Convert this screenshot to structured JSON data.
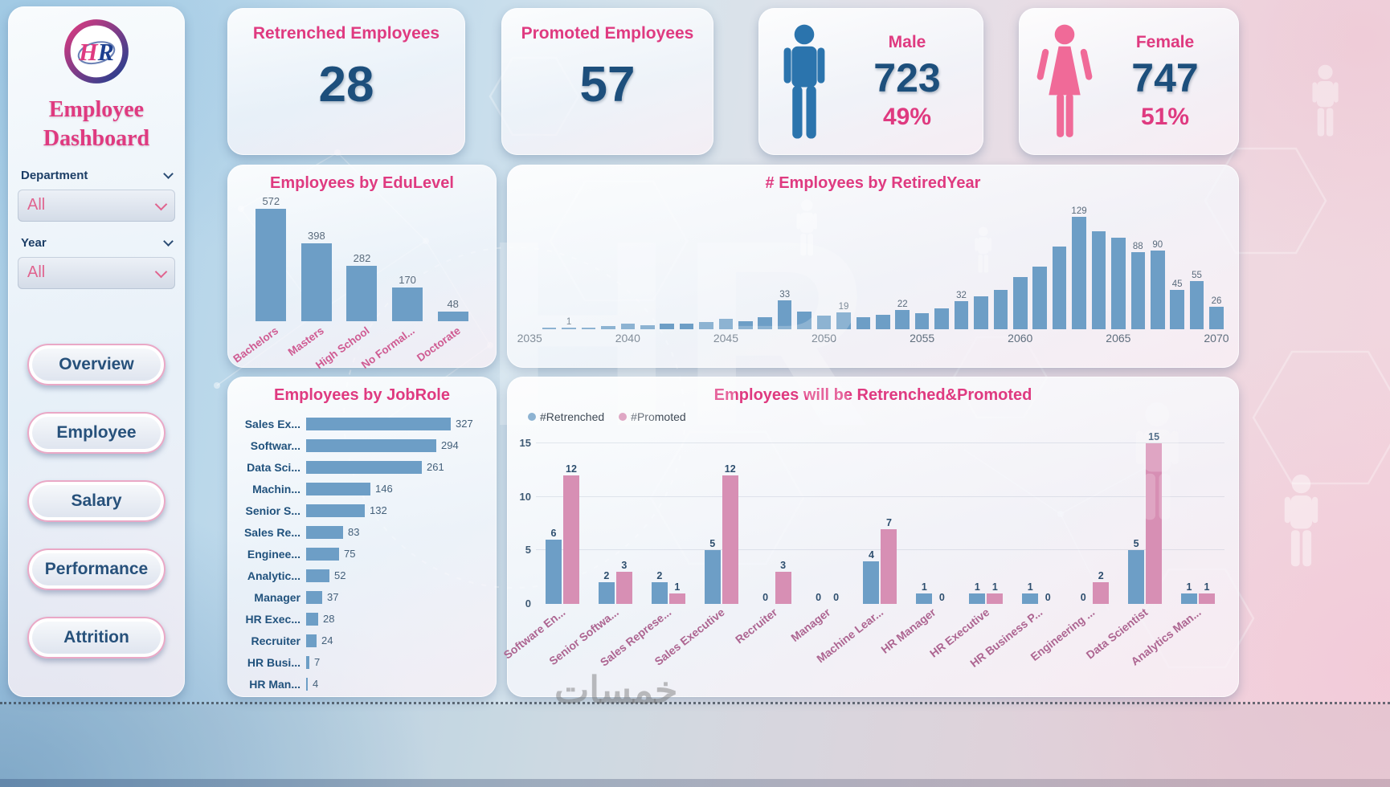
{
  "watermark": "خمسات",
  "colors": {
    "accent_pink": "#df3a80",
    "navy": "#1d4f7c",
    "bar_blue": "#6d9ec6",
    "bar_pink": "#d78fb4",
    "male_blue": "#2b74ad",
    "female_pink": "#f06a98"
  },
  "icons": {
    "logo": "hr-logo",
    "male": "male-person-icon",
    "female": "female-person-icon",
    "filter_chevron": "chevron-down-icon",
    "legend_marker": "circle-dot"
  },
  "sidebar": {
    "logo_h": "H",
    "logo_r": "R",
    "title_line1": "Employee",
    "title_line2": "Dashboard",
    "filters": [
      {
        "label": "Department",
        "value": "All"
      },
      {
        "label": "Year",
        "value": "All"
      }
    ],
    "nav": [
      "Overview",
      "Employee",
      "Salary",
      "Performance",
      "Attrition"
    ]
  },
  "kpis": {
    "retrenched": {
      "title": "Retrenched Employees",
      "value": "28"
    },
    "promoted": {
      "title": "Promoted Employees",
      "value": "57"
    },
    "male": {
      "title": "Male",
      "value": "723",
      "pct": "49%"
    },
    "female": {
      "title": "Female",
      "value": "747",
      "pct": "51%"
    }
  },
  "chart_data": [
    {
      "id": "edulevel",
      "type": "bar",
      "title": "Employees by EduLevel",
      "categories": [
        "Bachelors",
        "Masters",
        "High School",
        "No Formal...",
        "Doctorate"
      ],
      "values": [
        572,
        398,
        282,
        170,
        48
      ],
      "xlabel": "",
      "ylabel": "",
      "ylim": [
        0,
        572
      ],
      "grid": false,
      "value_labels": true
    },
    {
      "id": "retiredyear",
      "type": "bar",
      "title": "# Employees by RetiredYear",
      "x": [
        2035,
        2036,
        2037,
        2038,
        2039,
        2040,
        2041,
        2042,
        2043,
        2044,
        2045,
        2046,
        2047,
        2048,
        2049,
        2050,
        2051,
        2052,
        2053,
        2054,
        2055,
        2056,
        2057,
        2058,
        2059,
        2060,
        2061,
        2062,
        2063,
        2064,
        2065,
        2066,
        2067,
        2068,
        2069,
        2070
      ],
      "values": [
        0,
        2,
        1,
        1,
        4,
        6,
        5,
        6,
        6,
        8,
        12,
        9,
        14,
        33,
        20,
        16,
        19,
        14,
        17,
        22,
        18,
        24,
        32,
        38,
        45,
        60,
        72,
        95,
        129,
        112,
        105,
        88,
        90,
        45,
        55,
        26
      ],
      "bar_labels": [
        "",
        "",
        "1",
        "",
        "",
        "",
        "",
        "",
        "",
        "",
        "",
        "",
        "",
        "33",
        "",
        "",
        "19",
        "",
        "",
        "22",
        "",
        "",
        "32",
        "",
        "",
        "",
        "",
        "",
        "129",
        "",
        "",
        "88",
        "90",
        "45",
        "55",
        "26"
      ],
      "axis_ticks": [
        2035,
        2040,
        2045,
        2050,
        2055,
        2060,
        2065,
        2070
      ],
      "xlabel": "",
      "ylabel": "",
      "ylim": [
        0,
        129
      ],
      "grid": false
    },
    {
      "id": "jobrole",
      "type": "bar",
      "orientation": "horizontal",
      "title": "Employees by JobRole",
      "categories": [
        "Sales Ex...",
        "Softwar...",
        "Data Sci...",
        "Machin...",
        "Senior S...",
        "Sales Re...",
        "Enginee...",
        "Analytic...",
        "Manager",
        "HR Exec...",
        "Recruiter",
        "HR Busi...",
        "HR Man..."
      ],
      "values": [
        327,
        294,
        261,
        146,
        132,
        83,
        75,
        52,
        37,
        28,
        24,
        7,
        4
      ],
      "xlabel": "",
      "ylabel": "",
      "xlim": [
        0,
        327
      ],
      "grid": false,
      "value_labels": true
    },
    {
      "id": "retrenched_promoted",
      "type": "bar",
      "title": "Employees will be Retrenched&Promoted",
      "categories": [
        "Software En...",
        "Senior Softwa...",
        "Sales Represe...",
        "Sales Executive",
        "Recruiter",
        "Manager",
        "Machine Lear...",
        "HR Manager",
        "HR Executive",
        "HR Business P...",
        "Engineering ...",
        "Data Scientist",
        "Analytics Man..."
      ],
      "series": [
        {
          "name": "#Retrenched",
          "color": "#6d9ec6",
          "values": [
            6,
            2,
            2,
            5,
            0,
            0,
            4,
            1,
            1,
            1,
            0,
            5,
            1
          ]
        },
        {
          "name": "#Promoted",
          "color": "#d78fb4",
          "values": [
            12,
            3,
            1,
            12,
            3,
            0,
            7,
            0,
            1,
            0,
            2,
            15,
            1
          ]
        }
      ],
      "yticks": [
        0,
        5,
        10,
        15
      ],
      "ylim": [
        0,
        15
      ],
      "legend_position": "top-left",
      "grid": false,
      "value_labels": true
    }
  ]
}
